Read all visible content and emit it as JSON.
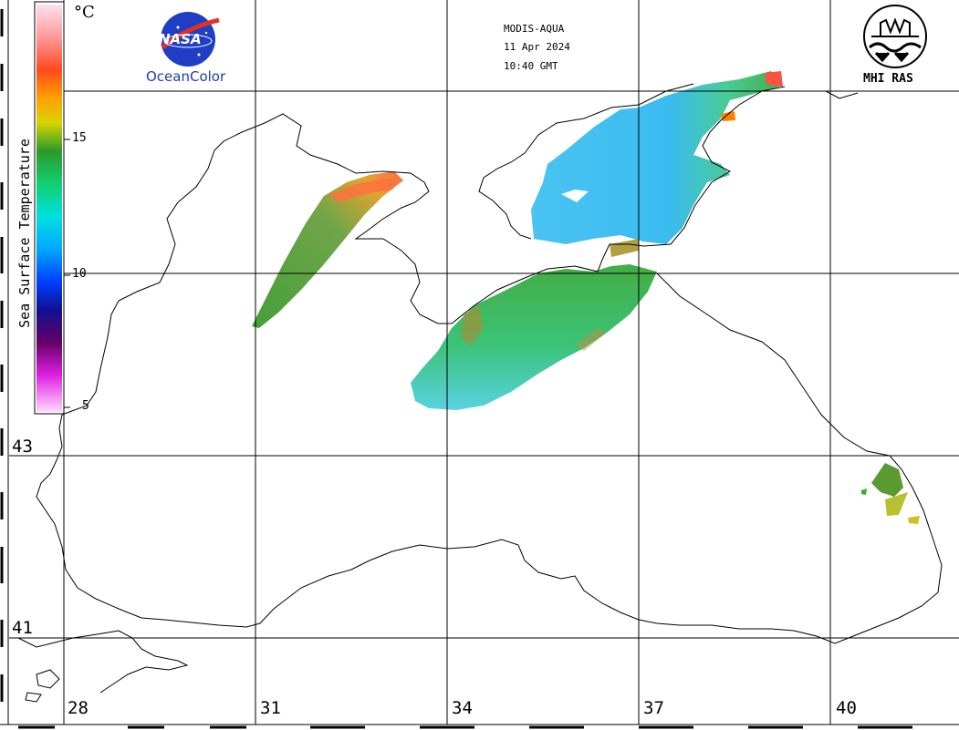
{
  "header": {
    "satellite": "MODIS-AQUA",
    "date": "11 Apr 2024",
    "time": "10:40 GMT"
  },
  "logos": {
    "nasa_wordmark": "NASA",
    "nasa_caption": "OceanColor",
    "mhi_caption": "MHI RAS"
  },
  "color_scale": {
    "title": "Sea Surface Temperature",
    "unit": "°C",
    "ticks": [
      "15",
      "10",
      "5"
    ],
    "colors": [
      "#ffd0e6",
      "#ff9090",
      "#ff4020",
      "#ffa000",
      "#d8d800",
      "#28a028",
      "#00d070",
      "#00e0e0",
      "#00a8ff",
      "#0050ff",
      "#1010a0",
      "#700070",
      "#ff20ff",
      "#ffd0ff"
    ]
  },
  "grid": {
    "latitudes": [
      "43",
      "41"
    ],
    "longitudes": [
      "28",
      "31",
      "34",
      "37",
      "40"
    ]
  },
  "map": {
    "region": "Black Sea",
    "land_color": "#ffffff",
    "coast_color": "#000000"
  }
}
